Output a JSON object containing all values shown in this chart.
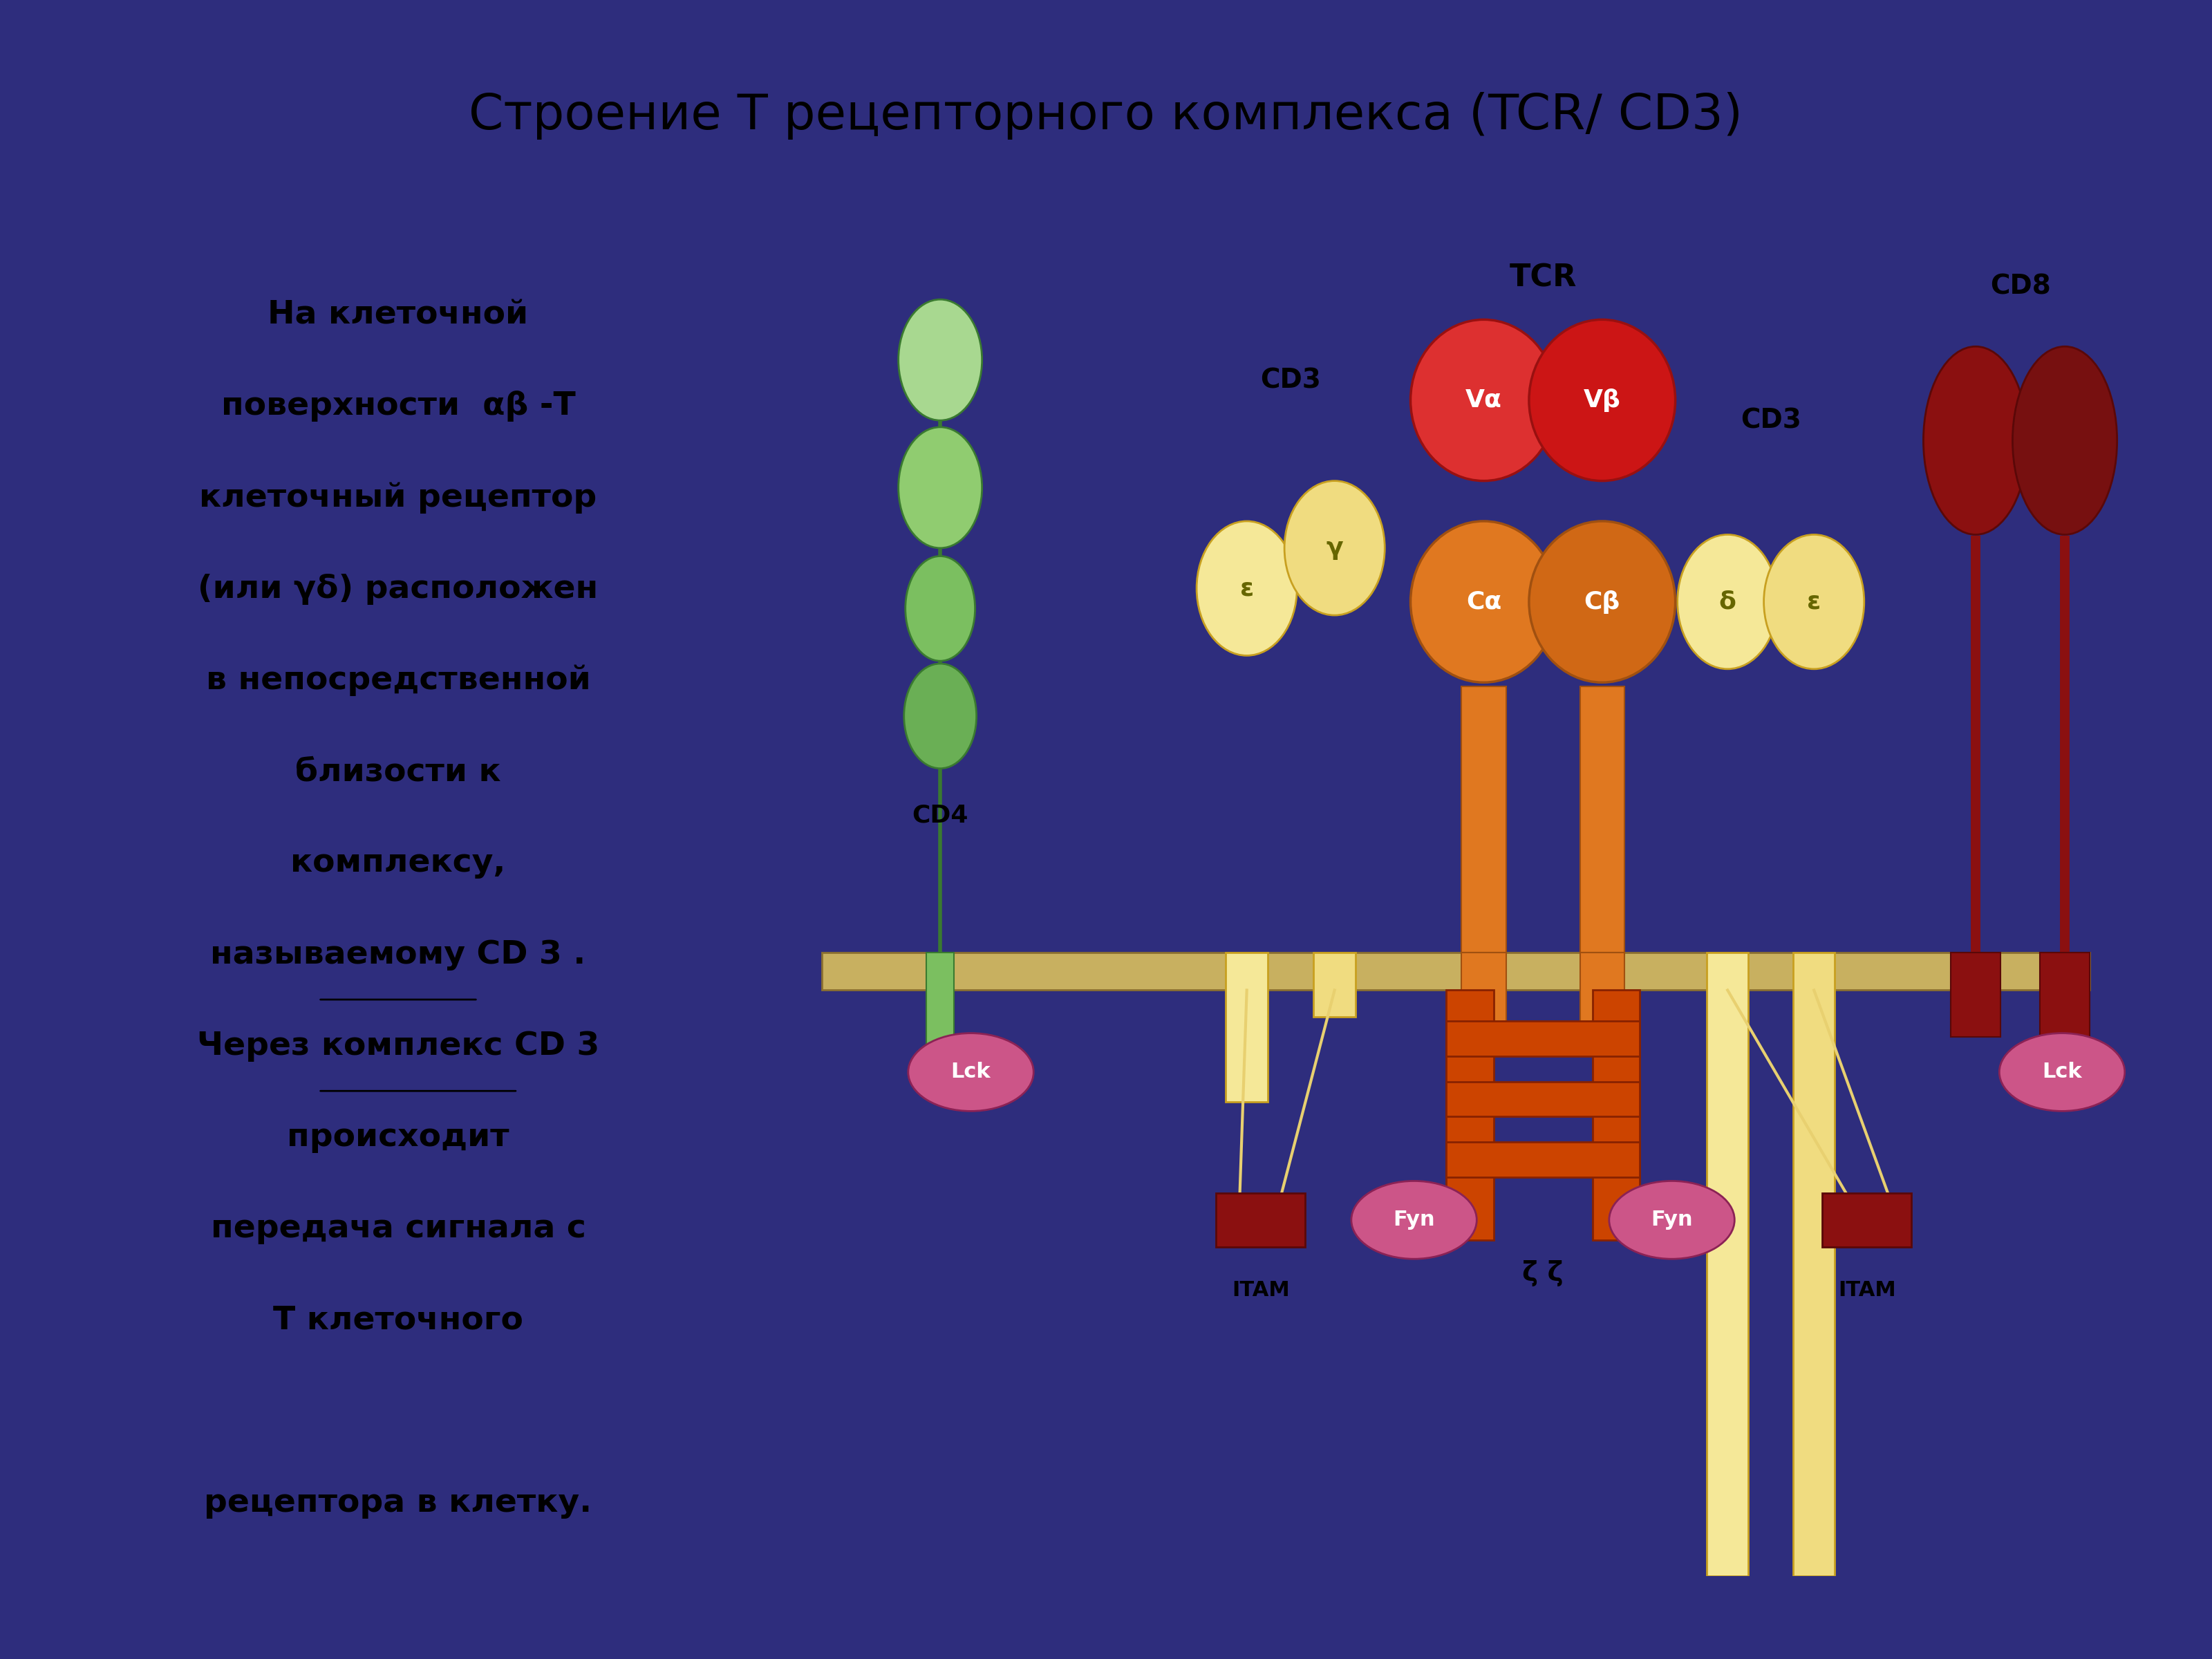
{
  "bg_color": "#2e2d7d",
  "title_bg": "#f5c842",
  "title_text": "Строение Т рецепторного комплекса (TCR/ CD3)",
  "title_color": "#000000",
  "left_panel_bg": "#f5c842",
  "left_text_color": "#000000",
  "left_text_line1": "На клеточной",
  "left_text_line2": "поверхности  αβ -Т",
  "left_text_line3": "клеточный рецептор",
  "left_text_line4": "(или γδ) расположен",
  "left_text_line5": "в непосредственной",
  "left_text_line6": "близости к",
  "left_text_line7": "комплексу,",
  "left_text_line8": "называемому CD 3 .",
  "left_text_line9": "Через комплекс CD 3",
  "left_text_line10": "происходит",
  "left_text_line11": "передача сигнала с",
  "left_text_line12": "Т клеточного",
  "left_text_line13": "",
  "left_text_line14": "рецептора в клетку.",
  "diagram_bg": "#ffffff",
  "membrane_color": "#c8b060",
  "cd4_colors": [
    "#a8d890",
    "#90cc70",
    "#7bbf60",
    "#6aaf55"
  ],
  "cd8_color": "#8b1010",
  "cd3_left_color": "#f5e898",
  "cd3_right_color": "#f5e898",
  "tcrVa_color": "#dd3030",
  "tcrVb_color": "#cc1515",
  "tcrCa_color": "#e07820",
  "tcrCb_color": "#d06815",
  "zeta_color": "#cc4400",
  "lck_color": "#cc5588",
  "fyn_color": "#cc5588",
  "itam_color": "#8b1010"
}
